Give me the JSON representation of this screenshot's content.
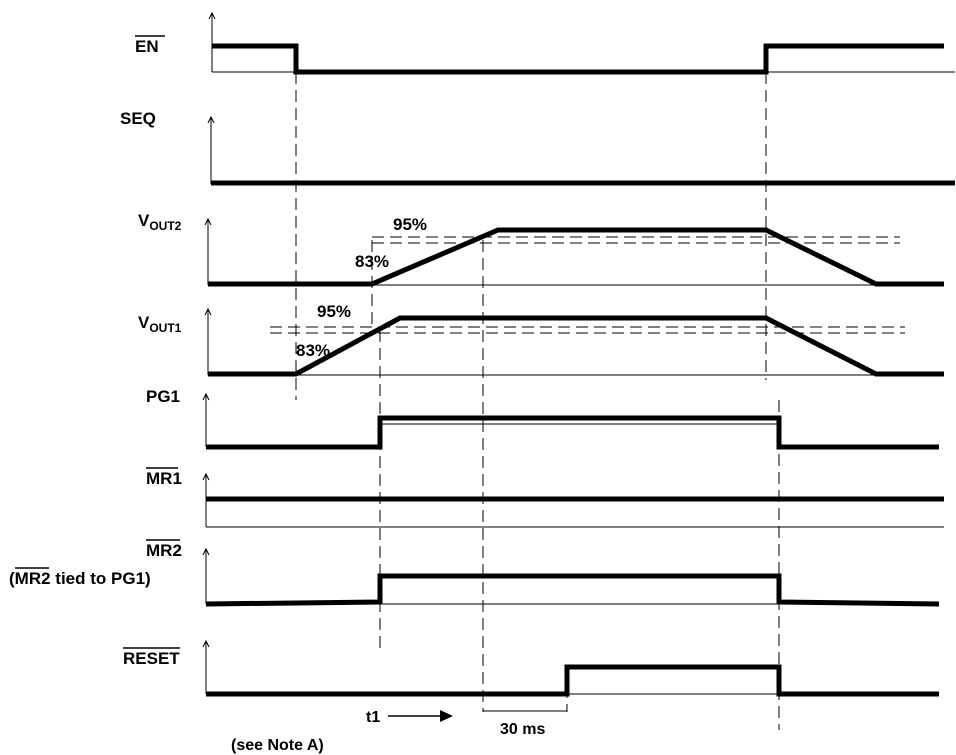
{
  "signals": [
    {
      "label": "EN",
      "overbar": true
    },
    {
      "label": "SEQ",
      "overbar": false
    },
    {
      "label": "V",
      "sub": "OUT2",
      "overbar": false
    },
    {
      "label": "V",
      "sub": "OUT1",
      "overbar": false
    },
    {
      "label": "PG1",
      "overbar": false
    },
    {
      "label": "MR1",
      "overbar": true
    },
    {
      "label": "MR2",
      "overbar": true
    },
    {
      "label": "RESET",
      "overbar": true
    }
  ],
  "mr2_note": {
    "open": "(",
    "signal": "MR2",
    "rest": " tied to PG1)"
  },
  "annotations": {
    "vout2_upper": "95%",
    "vout2_lower": "83%",
    "vout1_upper": "95%",
    "vout1_lower": "83%",
    "t1": "t1",
    "delay": "30 ms",
    "note": "(see Note A)"
  }
}
